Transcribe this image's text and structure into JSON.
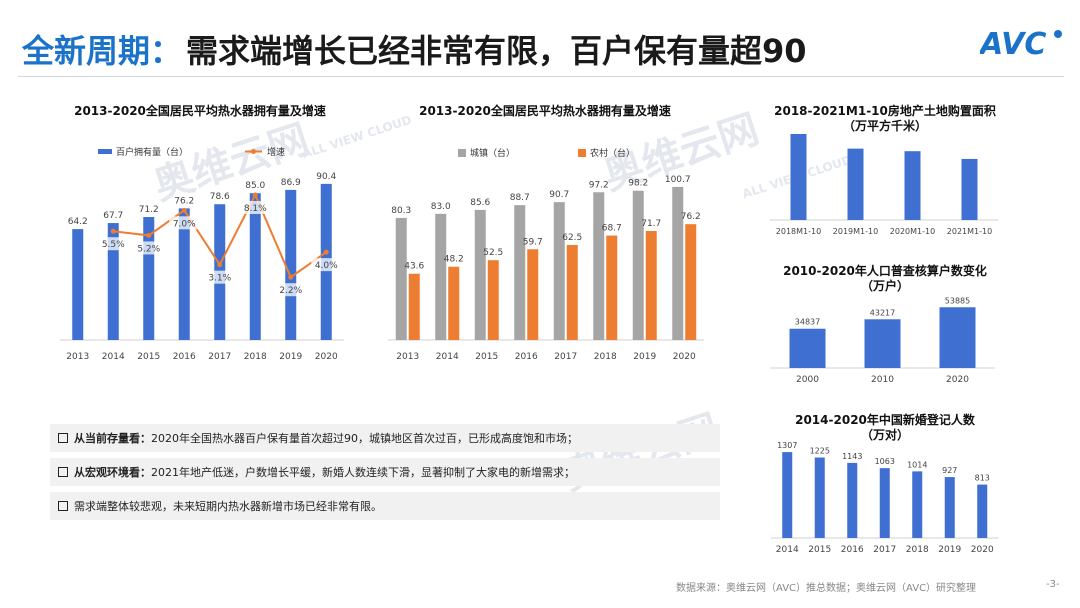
{
  "header": {
    "title_highlight": "全新周期：",
    "title_main": "需求端增长已经非常有限，百户保有量超90",
    "logo_text": "AVC"
  },
  "watermark": {
    "line1": "奥维云网",
    "line2": "ALL VIEW CLOUD"
  },
  "charts": {
    "c1": {
      "title": "2013-2020全国居民平均热水器拥有量及增速",
      "legend_bar": "百户拥有量（台）",
      "legend_line": "增速",
      "bar_color": "#3f6fd1",
      "line_color": "#ed7d31"
    },
    "c2": {
      "title": "2013-2020全国居民平均热水器拥有量及增速",
      "legend_a": "城镇（台）",
      "legend_b": "农村（台）",
      "color_a": "#a5a5a5",
      "color_b": "#ed7d31"
    },
    "c3": {
      "title_l1": "2018-2021M1-10房地产土地购置面积",
      "title_l2": "（万平方千米）",
      "color": "#3f6fd1"
    },
    "c4": {
      "title_l1": "2010-2020年人口普查核算户数变化",
      "title_l2": "（万户）",
      "color": "#3f6fd1"
    },
    "c5": {
      "title_l1": "2014-2020年中国新婚登记人数",
      "title_l2": "（万对）",
      "color": "#3f6fd1"
    }
  },
  "chart_data": [
    {
      "type": "bar",
      "title": "2013-2020全国居民平均热水器拥有量及增速",
      "categories": [
        "2013",
        "2014",
        "2015",
        "2016",
        "2017",
        "2018",
        "2019",
        "2020"
      ],
      "series": [
        {
          "name": "百户拥有量（台）",
          "type": "bar",
          "values": [
            64.2,
            67.7,
            71.2,
            76.2,
            78.6,
            85.0,
            86.9,
            90.4
          ],
          "labels": [
            "64.2",
            "67.7",
            "71.2",
            "76.2",
            "78.6",
            "85.0",
            "86.9",
            "90.4"
          ]
        },
        {
          "name": "增速",
          "type": "line",
          "values": [
            null,
            5.5,
            5.2,
            7.0,
            3.1,
            8.1,
            2.2,
            4.0
          ],
          "labels": [
            "",
            "5.5%",
            "5.2%",
            "7.0%",
            "3.1%",
            "8.1%",
            "2.2%",
            "4.0%"
          ]
        }
      ]
    },
    {
      "type": "bar",
      "title": "2013-2020全国居民平均热水器拥有量及增速",
      "categories": [
        "2013",
        "2014",
        "2015",
        "2016",
        "2017",
        "2018",
        "2019",
        "2020"
      ],
      "series": [
        {
          "name": "城镇（台）",
          "values": [
            80.3,
            83.0,
            85.6,
            88.7,
            90.7,
            97.2,
            98.2,
            100.7
          ],
          "labels": [
            "80.3",
            "83.0",
            "85.6",
            "88.7",
            "90.7",
            "97.2",
            "98.2",
            "100.7"
          ]
        },
        {
          "name": "农村（台）",
          "values": [
            43.6,
            48.2,
            52.5,
            59.7,
            62.5,
            68.7,
            71.7,
            76.2
          ],
          "labels": [
            "43.6",
            "48.2",
            "52.5",
            "59.7",
            "62.5",
            "68.7",
            "71.7",
            "76.2"
          ]
        }
      ]
    },
    {
      "type": "bar",
      "title": "2018-2021M1-10房地产土地购置面积（万平方千米）",
      "categories": [
        "2018M1-10",
        "2019M1-10",
        "2020M1-10",
        "2021M1-10"
      ],
      "values": [
        100,
        83,
        80,
        71
      ]
    },
    {
      "type": "bar",
      "title": "2010-2020年人口普查核算户数变化（万户）",
      "categories": [
        "2000",
        "2010",
        "2020"
      ],
      "values": [
        34837,
        43217,
        53885
      ],
      "labels": [
        "34837",
        "43217",
        "53885"
      ]
    },
    {
      "type": "bar",
      "title": "2014-2020年中国新婚登记人数（万对）",
      "categories": [
        "2014",
        "2015",
        "2016",
        "2017",
        "2018",
        "2019",
        "2020"
      ],
      "values": [
        1307,
        1225,
        1143,
        1063,
        1014,
        927,
        813
      ],
      "labels": [
        "1307",
        "1225",
        "1143",
        "1063",
        "1014",
        "927",
        "813"
      ]
    }
  ],
  "bullets": [
    {
      "lead": "从当前存量看：",
      "text": "2020年全国热水器百户保有量首次超过90，城镇地区首次过百，已形成高度饱和市场；"
    },
    {
      "lead": "从宏观环境看：",
      "text": "2021年地产低迷，户数增长平缓，新婚人数连续下滑，显著抑制了大家电的新增需求；"
    },
    {
      "lead": "",
      "text": "需求端整体较悲观，未来短期内热水器新增市场已经非常有限。"
    }
  ],
  "footer": {
    "source": "数据来源：奥维云网（AVC）推总数据；奥维云网（AVC）研究整理",
    "page": "-3-"
  }
}
